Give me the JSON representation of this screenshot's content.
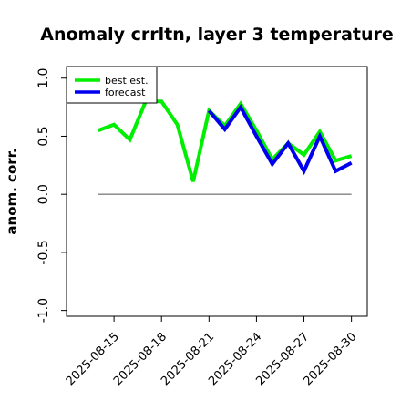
{
  "chart_data": {
    "type": "line",
    "title": "Anomaly crrltn, layer 3 temperature",
    "xlabel": "",
    "ylabel": "anom. corr.",
    "ylim": [
      -1.05,
      1.1
    ],
    "yticks": [
      "-1.0",
      "-0.5",
      "0.0",
      "0.5",
      "1.0"
    ],
    "ytick_values": [
      -1.0,
      -0.5,
      0.0,
      0.5,
      1.0
    ],
    "x_dates": [
      "2025-08-14",
      "2025-08-15",
      "2025-08-16",
      "2025-08-17",
      "2025-08-18",
      "2025-08-19",
      "2025-08-20",
      "2025-08-21",
      "2025-08-22",
      "2025-08-23",
      "2025-08-24",
      "2025-08-25",
      "2025-08-26",
      "2025-08-27",
      "2025-08-28",
      "2025-08-29",
      "2025-08-30"
    ],
    "xlim": [
      "2025-08-12",
      "2025-08-31"
    ],
    "xticks": [
      "2025-08-15",
      "2025-08-18",
      "2025-08-21",
      "2025-08-24",
      "2025-08-27",
      "2025-08-30"
    ],
    "xtick_colors": [
      "#000000",
      "#000000",
      "#228B22",
      "#000000",
      "#000000",
      "#000000"
    ],
    "reference_line": 0.0,
    "legend": {
      "placement": "top-left"
    },
    "series": [
      {
        "name": "best est.",
        "color": "#00ee00",
        "x": [
          "2025-08-14",
          "2025-08-15",
          "2025-08-16",
          "2025-08-17",
          "2025-08-18",
          "2025-08-19",
          "2025-08-20",
          "2025-08-21",
          "2025-08-22",
          "2025-08-23",
          "2025-08-24",
          "2025-08-25",
          "2025-08-26",
          "2025-08-27",
          "2025-08-28",
          "2025-08-29",
          "2025-08-30"
        ],
        "values": [
          0.55,
          0.6,
          0.47,
          0.8,
          0.8,
          0.6,
          0.11,
          0.72,
          0.59,
          0.78,
          0.55,
          0.3,
          0.44,
          0.34,
          0.54,
          0.29,
          0.33
        ]
      },
      {
        "name": "forecast",
        "color": "#0000ee",
        "x": [
          "2025-08-21",
          "2025-08-22",
          "2025-08-23",
          "2025-08-24",
          "2025-08-25",
          "2025-08-26",
          "2025-08-27",
          "2025-08-28",
          "2025-08-29",
          "2025-08-30"
        ],
        "values": [
          0.72,
          0.56,
          0.75,
          0.5,
          0.26,
          0.44,
          0.2,
          0.5,
          0.2,
          0.27
        ]
      }
    ]
  }
}
